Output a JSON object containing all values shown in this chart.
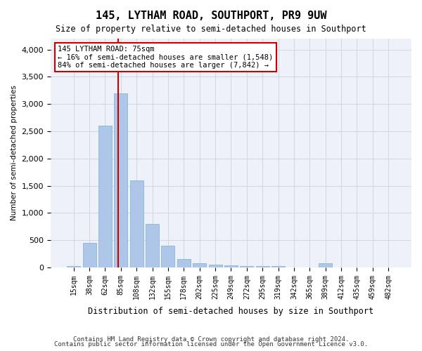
{
  "title": "145, LYTHAM ROAD, SOUTHPORT, PR9 9UW",
  "subtitle": "Size of property relative to semi-detached houses in Southport",
  "xlabel": "Distribution of semi-detached houses by size in Southport",
  "ylabel": "Number of semi-detached properties",
  "categories": [
    "15sqm",
    "38sqm",
    "62sqm",
    "85sqm",
    "108sqm",
    "132sqm",
    "155sqm",
    "178sqm",
    "202sqm",
    "225sqm",
    "249sqm",
    "272sqm",
    "295sqm",
    "319sqm",
    "342sqm",
    "365sqm",
    "389sqm",
    "412sqm",
    "435sqm",
    "459sqm",
    "482sqm"
  ],
  "values": [
    30,
    450,
    2600,
    3200,
    1600,
    800,
    400,
    150,
    70,
    55,
    40,
    30,
    25,
    20,
    0,
    0,
    70,
    0,
    0,
    0,
    0
  ],
  "bar_color": "#aec6e8",
  "bar_edge_color": "#7bafd4",
  "property_line_x": 2,
  "property_sqm": 75,
  "annotation_title": "145 LYTHAM ROAD: 75sqm",
  "annotation_line1": "← 16% of semi-detached houses are smaller (1,548)",
  "annotation_line2": "84% of semi-detached houses are larger (7,842) →",
  "annotation_box_color": "#ffffff",
  "annotation_box_edge": "#cc0000",
  "vline_color": "#cc0000",
  "grid_color": "#d0d8e8",
  "background_color": "#eef2f8",
  "ylim": [
    0,
    4200
  ],
  "footer1": "Contains HM Land Registry data © Crown copyright and database right 2024.",
  "footer2": "Contains public sector information licensed under the Open Government Licence v3.0."
}
